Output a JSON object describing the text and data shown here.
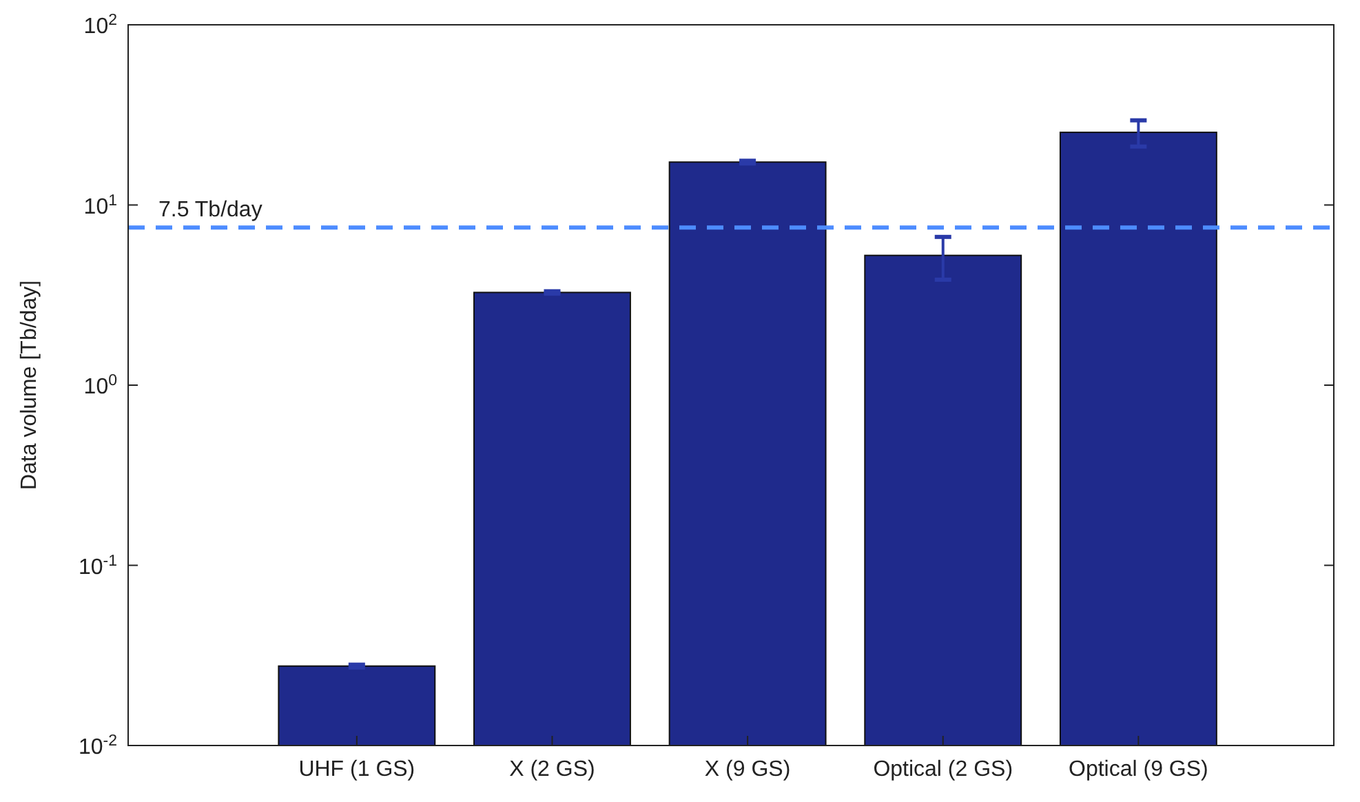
{
  "chart_data": {
    "type": "bar",
    "ylabel": "Data volume [Tb/day]",
    "log": "y",
    "categories": [
      "UHF (1 GS)",
      "X (2 GS)",
      "X (9 GS)",
      "Optical (2 GS)",
      "Optical (9 GS)"
    ],
    "values": [
      0.0276,
      3.27,
      17.3,
      5.25,
      25.3
    ],
    "errors": [
      0.0005,
      0.05,
      0.3,
      1.4,
      4.2
    ],
    "color": "#1f2a8c",
    "ylim": [
      0.01,
      100
    ],
    "yticks": [
      {
        "value": 0.01,
        "label": "10$^{-2}$"
      },
      {
        "value": 0.1,
        "label": "10$^{-1}$"
      },
      {
        "value": 1,
        "label": "10$^{0}$"
      },
      {
        "value": 10,
        "label": "10$^{1}$"
      },
      {
        "value": 100,
        "label": "10$^{2}$"
      }
    ],
    "ref_lines": [
      {
        "axis": "y",
        "value": 7.5,
        "label": "7.5 Tb/day",
        "color": "#4d8cff",
        "line_style": "dashed"
      }
    ],
    "grid": false
  }
}
